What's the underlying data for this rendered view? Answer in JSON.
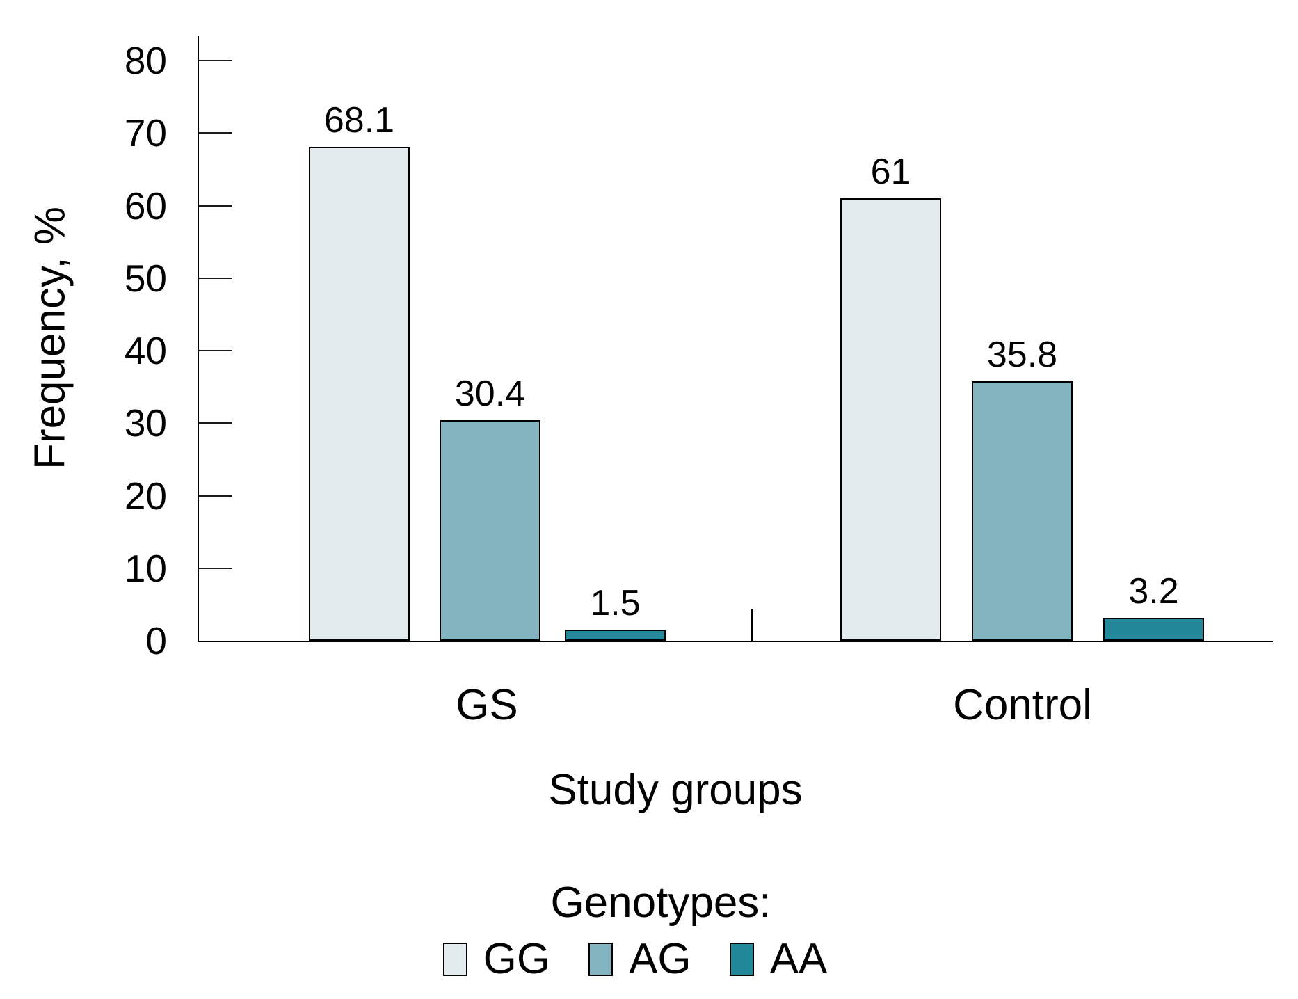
{
  "chart_data": {
    "type": "bar",
    "title": "",
    "xlabel": "Study groups",
    "ylabel": "Frequency, %",
    "legend_title": "Genotypes:",
    "legend_position": "bottom",
    "categories": [
      "GS",
      "Control"
    ],
    "series": [
      {
        "name": "GG",
        "color": "#e2ecee",
        "values": [
          68.1,
          61
        ],
        "labels": [
          "68.1",
          "61"
        ]
      },
      {
        "name": "AG",
        "color": "#84b4c0",
        "values": [
          30.4,
          35.8
        ],
        "labels": [
          "30.4",
          "35.8"
        ]
      },
      {
        "name": "AA",
        "color": "#23899a",
        "values": [
          1.5,
          3.2
        ],
        "labels": [
          "1.5",
          "3.2"
        ]
      }
    ],
    "ylim": [
      0,
      80
    ],
    "yticks": [
      0,
      10,
      20,
      30,
      40,
      50,
      60,
      70,
      80
    ],
    "grid": false,
    "bar_edge_color": "#000000",
    "axis_color": "#000000"
  }
}
